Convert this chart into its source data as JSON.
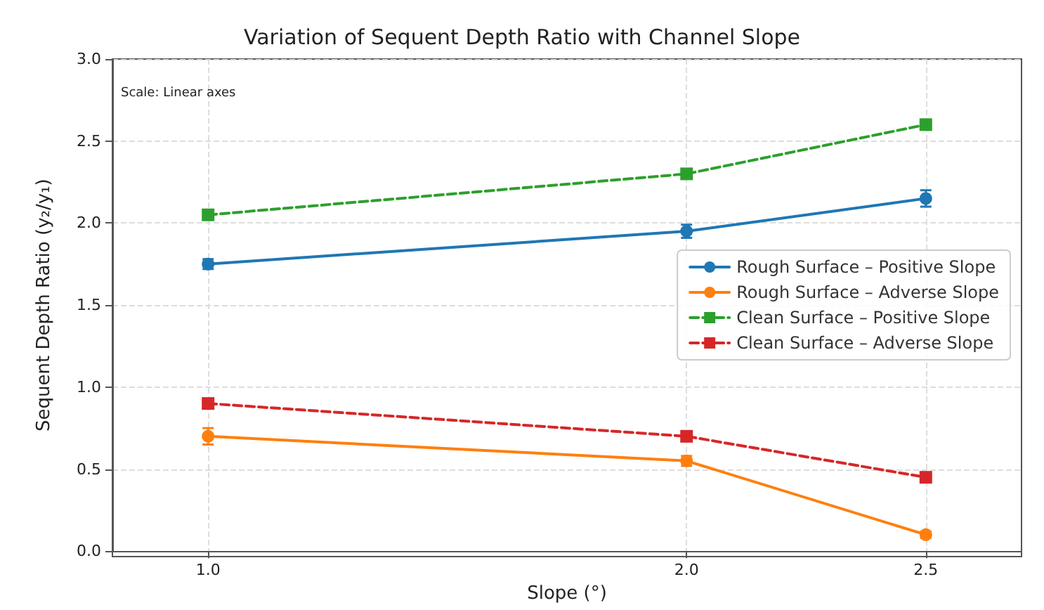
{
  "chart_data": {
    "type": "line",
    "title": "Variation of Sequent Depth Ratio with Channel Slope",
    "xlabel": "Slope (°)",
    "ylabel": "Sequent Depth Ratio (y₂/y₁)",
    "x": [
      1.0,
      2.0,
      2.5
    ],
    "series": [
      {
        "name": "Rough Surface – Positive Slope",
        "color": "#1f77b4",
        "values": [
          1.75,
          1.95,
          2.15
        ],
        "errors": [
          0.03,
          0.04,
          0.05
        ],
        "marker": "circle",
        "line_style": "solid"
      },
      {
        "name": "Rough Surface – Adverse Slope",
        "color": "#ff7f0e",
        "values": [
          0.7,
          0.55,
          0.1
        ],
        "errors": [
          0.05,
          0.03,
          0.02
        ],
        "marker": "circle",
        "line_style": "solid"
      },
      {
        "name": "Clean Surface – Positive Slope",
        "color": "#2ca02c",
        "values": [
          2.05,
          2.3,
          2.6
        ],
        "marker": "square",
        "line_style": "dashed"
      },
      {
        "name": "Clean Surface – Adverse Slope",
        "color": "#d62728",
        "values": [
          0.9,
          0.7,
          0.45
        ],
        "marker": "square",
        "line_style": "dashed"
      }
    ],
    "xlim": [
      0.8,
      2.7
    ],
    "xticks": [
      {
        "value": 1.0,
        "label": "1.0"
      },
      {
        "value": 2.0,
        "label": "2.0"
      },
      {
        "value": 2.5,
        "label": "2.5"
      }
    ],
    "ylim": [
      0,
      3
    ],
    "yticks": [
      {
        "value": 0,
        "label": "0.0"
      },
      {
        "value": 0.5,
        "label": "0.5"
      },
      {
        "value": 1.0,
        "label": "1.0"
      },
      {
        "value": 1.5,
        "label": "1.5"
      },
      {
        "value": 2.0,
        "label": "2.0"
      },
      {
        "value": 2.5,
        "label": "2.5"
      },
      {
        "value": 3.0,
        "label": "3.0"
      }
    ],
    "annotations": [
      "Scale: Linear axes"
    ],
    "grid": true,
    "legend": "right"
  }
}
